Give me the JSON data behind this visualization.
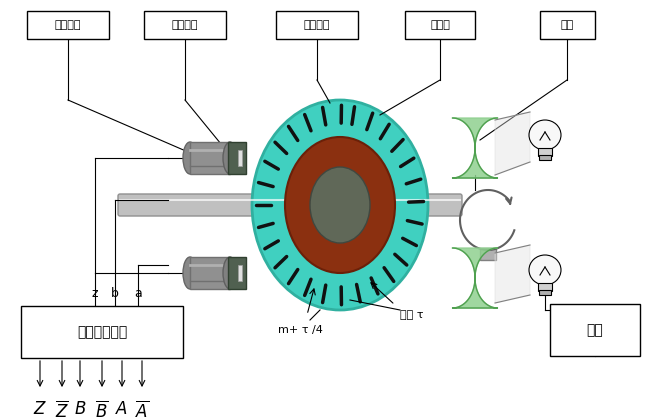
{
  "bg_color": "#ffffff",
  "labels": {
    "guangmin_yuanjian": "光敏元件",
    "touguang_xiafeng": "透光狭缝",
    "mapan_jipian": "码盘基片",
    "guangshan_ban": "光栅板",
    "toujing": "透镜",
    "xinhao_chuli": "信号处理装置",
    "guangyuan": "光源",
    "m_tau4": "m+ τ /4",
    "jieju_tau": "节距 τ",
    "z_label": "z",
    "b_label": "b",
    "a_label": "a"
  },
  "figsize": [
    6.64,
    4.17
  ],
  "dpi": 100
}
